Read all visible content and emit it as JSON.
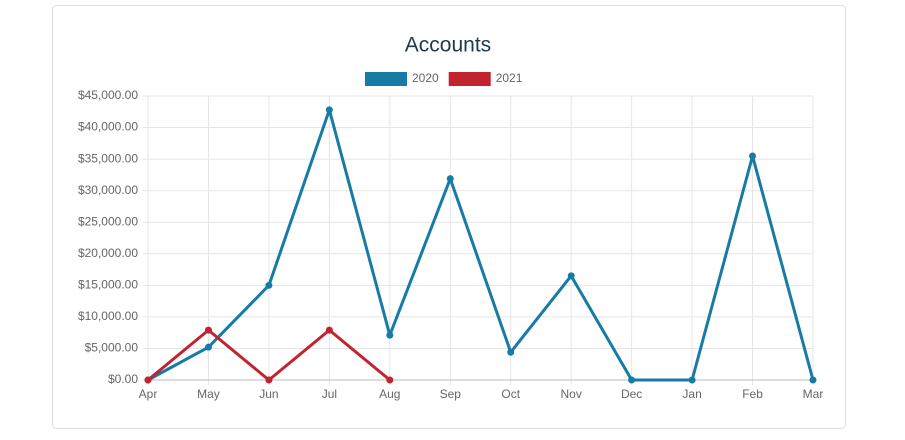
{
  "chart_data": {
    "type": "line",
    "title": "Accounts",
    "categories": [
      "Apr",
      "May",
      "Jun",
      "Jul",
      "Aug",
      "Sep",
      "Oct",
      "Nov",
      "Dec",
      "Jan",
      "Feb",
      "Mar"
    ],
    "series": [
      {
        "name": "2020",
        "color": "#187ba5",
        "values": [
          0,
          5200,
          15000,
          42800,
          7100,
          31900,
          4400,
          16500,
          0,
          0,
          35500,
          0
        ]
      },
      {
        "name": "2021",
        "color": "#c1232f",
        "values": [
          0,
          7900,
          0,
          7900,
          0,
          null,
          null,
          null,
          null,
          null,
          null,
          null
        ]
      }
    ],
    "ylim": [
      0,
      45000
    ],
    "yticks": [
      {
        "value": 0,
        "label": "$0.00"
      },
      {
        "value": 5000,
        "label": "$5,000.00"
      },
      {
        "value": 10000,
        "label": "$10,000.00"
      },
      {
        "value": 15000,
        "label": "$15,000.00"
      },
      {
        "value": 20000,
        "label": "$20,000.00"
      },
      {
        "value": 25000,
        "label": "$25,000.00"
      },
      {
        "value": 30000,
        "label": "$30,000.00"
      },
      {
        "value": 35000,
        "label": "$35,000.00"
      },
      {
        "value": 40000,
        "label": "$40,000.00"
      },
      {
        "value": 45000,
        "label": "$45,000.00"
      }
    ],
    "grid": true,
    "legend": "top"
  }
}
